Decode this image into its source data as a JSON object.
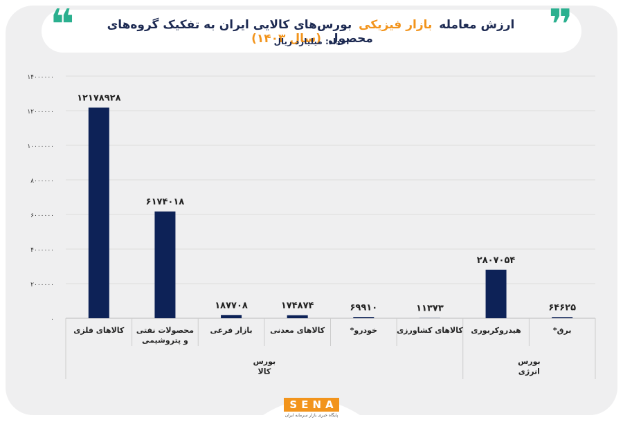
{
  "chart_data": {
    "type": "bar",
    "title_parts": [
      "ارزش معامله",
      "بازار فیزیکی",
      "بورس‌های کالایی ایران به تفکیک گروه‌های محصول",
      "(سال ۱۴۰۳)"
    ],
    "subtitle": "اعداد: میلیارد ریال",
    "categories": [
      "کالاهای فلزی",
      "محصولات نفتی\nو پتروشیمی",
      "بازار فرعی",
      "کالاهای معدنی",
      "خودرو*",
      "کالاهای کشاورزی",
      "هیدروکربوری",
      "برق*"
    ],
    "groups": [
      "بورس\nکالا",
      "بورس\nانرژی"
    ],
    "values": [
      12178928,
      6174018,
      187708,
      174874,
      69910,
      11373,
      2807054,
      64625
    ],
    "value_labels": [
      "۱۲۱۷۸۹۲۸",
      "۶۱۷۴۰۱۸",
      "۱۸۷۷۰۸",
      "۱۷۴۸۷۴",
      "۶۹۹۱۰",
      "۱۱۳۷۳",
      "۲۸۰۷۰۵۴",
      "۶۴۶۲۵"
    ],
    "color": "#0d2257",
    "ylim": [
      0,
      14000000
    ],
    "yticks": [
      {
        "value": 0,
        "label": "۰"
      },
      {
        "value": 2000000,
        "label": "۲۰۰۰۰۰۰"
      },
      {
        "value": 4000000,
        "label": "۴۰۰۰۰۰۰"
      },
      {
        "value": 6000000,
        "label": "۶۰۰۰۰۰۰"
      },
      {
        "value": 8000000,
        "label": "۸۰۰۰۰۰۰"
      },
      {
        "value": 10000000,
        "label": "۱۰۰۰۰۰۰۰"
      },
      {
        "value": 12000000,
        "label": "۱۲۰۰۰۰۰۰"
      },
      {
        "value": 14000000,
        "label": "۱۴۰۰۰۰۰۰"
      }
    ],
    "grid": true,
    "logo": {
      "name": "SENA",
      "tagline": "پایگاه خبری بازار سرمایه ایران"
    }
  }
}
